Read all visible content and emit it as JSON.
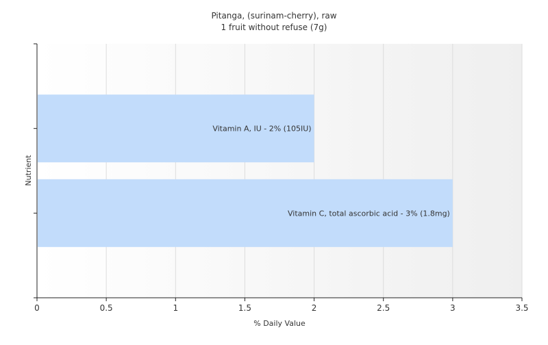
{
  "chart_data": {
    "type": "bar",
    "orientation": "horizontal",
    "title": "Pitanga, (surinam-cherry), raw",
    "subtitle": "1 fruit without refuse (7g)",
    "xlabel": "% Daily Value",
    "ylabel": "Nutrient",
    "xlim": [
      0,
      3.5
    ],
    "xticks": [
      "0",
      "0.5",
      "1",
      "1.5",
      "2",
      "2.5",
      "3",
      "3.5"
    ],
    "grid": true,
    "bar_color": "#c2dcfb",
    "bars": [
      {
        "label": "Vitamin A, IU - 2% (105IU)",
        "value": 2
      },
      {
        "label": "Vitamin C, total ascorbic acid - 3% (1.8mg)",
        "value": 3
      }
    ]
  }
}
